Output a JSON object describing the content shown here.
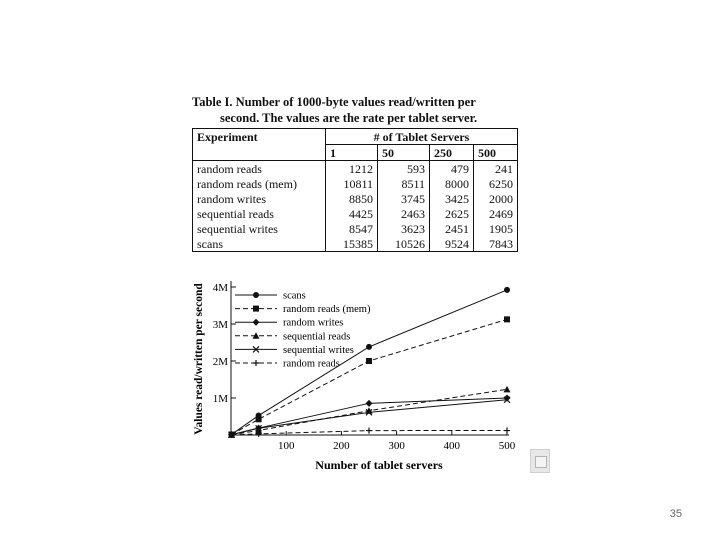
{
  "table": {
    "caption_line1": "Table I. Number of 1000-byte values read/written per",
    "caption_line2": "second. The values are the rate per tablet server.",
    "header_experiment": "Experiment",
    "header_servers": "# of Tablet Servers",
    "server_counts": [
      "1",
      "50",
      "250",
      "500"
    ],
    "rows": [
      {
        "name": "random reads",
        "values": [
          "1212",
          "593",
          "479",
          "241"
        ]
      },
      {
        "name": "random reads (mem)",
        "values": [
          "10811",
          "8511",
          "8000",
          "6250"
        ]
      },
      {
        "name": "random writes",
        "values": [
          "8850",
          "3745",
          "3425",
          "2000"
        ]
      },
      {
        "name": "sequential reads",
        "values": [
          "4425",
          "2463",
          "2625",
          "2469"
        ]
      },
      {
        "name": "sequential writes",
        "values": [
          "8547",
          "3623",
          "2451",
          "1905"
        ]
      },
      {
        "name": "scans",
        "values": [
          "15385",
          "10526",
          "9524",
          "7843"
        ]
      }
    ]
  },
  "chart_data": {
    "type": "line",
    "xlabel": "Number of tablet servers",
    "ylabel": "Values read/written per second",
    "x": [
      1,
      50,
      250,
      500
    ],
    "xlim": [
      0,
      500
    ],
    "ylim": [
      0,
      4000000
    ],
    "xticks": [
      100,
      200,
      300,
      400,
      500
    ],
    "xtick_labels": [
      "100",
      "200",
      "300",
      "400",
      "500"
    ],
    "yticks": [
      1000000,
      2000000,
      3000000,
      4000000
    ],
    "ytick_labels": [
      "1M",
      "2M",
      "3M",
      "4M"
    ],
    "legend_position": "top-left",
    "series": [
      {
        "name": "scans",
        "marker": "circle",
        "dash": "solid",
        "values": [
          15385,
          526300,
          2381000,
          3921500
        ]
      },
      {
        "name": "random reads (mem)",
        "marker": "square",
        "dash": "dashed",
        "values": [
          10811,
          425550,
          2000000,
          3125000
        ]
      },
      {
        "name": "random writes",
        "marker": "diamond",
        "dash": "solid",
        "values": [
          8850,
          187250,
          856250,
          1000000
        ]
      },
      {
        "name": "sequential reads",
        "marker": "triangle",
        "dash": "dashed",
        "values": [
          4425,
          123150,
          656250,
          1234500
        ]
      },
      {
        "name": "sequential writes",
        "marker": "x",
        "dash": "solid",
        "values": [
          8547,
          181150,
          612750,
          952500
        ]
      },
      {
        "name": "random reads",
        "marker": "plus",
        "dash": "dashed",
        "values": [
          1212,
          29650,
          119750,
          120500
        ]
      }
    ]
  },
  "slide_number": "35"
}
